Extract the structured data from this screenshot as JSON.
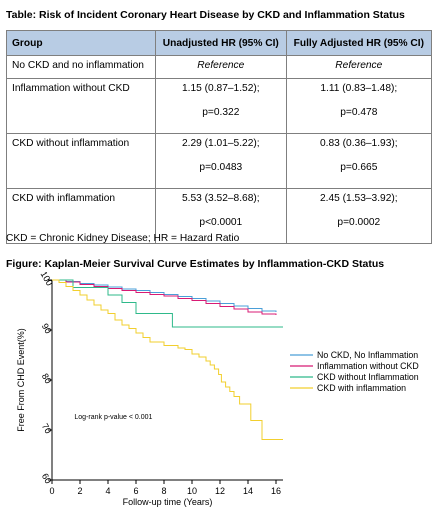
{
  "table": {
    "title": "Table: Risk of Incident Coronary Heart Disease by CKD and Inflammation Status",
    "headers": [
      "Group",
      "Unadjusted HR (95% CI)",
      "Fully Adjusted HR (95% CI)"
    ],
    "rows": [
      {
        "group": "No CKD and no inflammation",
        "unadj": "Reference",
        "unadj_p": "",
        "adj": "Reference",
        "adj_p": ""
      },
      {
        "group": "Inflammation without CKD",
        "unadj": "1.15 (0.87–1.52);",
        "unadj_p": "p=0.322",
        "adj": "1.11 (0.83–1.48);",
        "adj_p": "p=0.478"
      },
      {
        "group": "CKD without inflammation",
        "unadj": "2.29 (1.01–5.22);",
        "unadj_p": "p=0.0483",
        "adj": "0.83 (0.36–1.93);",
        "adj_p": "p=0.665"
      },
      {
        "group": "CKD with inflammation",
        "unadj": "5.53 (3.52–8.68);",
        "unadj_p": "p<0.0001",
        "adj": "2.45 (1.53–3.92);",
        "adj_p": "p=0.0002"
      }
    ],
    "footnote": "CKD = Chronic Kidney Disease; HR = Hazard Ratio"
  },
  "figure": {
    "title": "Figure: Kaplan-Meier Survival Curve Estimates by Inflammation-CKD Status"
  },
  "chart_data": {
    "type": "line",
    "xlabel": "Follow-up time (Years)",
    "ylabel": "Free From CHD Event(%)",
    "xlim": [
      0,
      16.5
    ],
    "ylim": [
      60,
      100
    ],
    "xticks": [
      0,
      2,
      4,
      6,
      8,
      10,
      12,
      14,
      16
    ],
    "yticks": [
      60,
      70,
      80,
      90,
      100
    ],
    "annotation": "Log-rank p-value < 0.001",
    "legend_position": "right",
    "series": [
      {
        "name": "No CKD, No Inflammation",
        "color": "#4a9fd8",
        "step": true,
        "points": [
          [
            0,
            100
          ],
          [
            1,
            99.7
          ],
          [
            2,
            99.3
          ],
          [
            3,
            99
          ],
          [
            4,
            98.6
          ],
          [
            5,
            98.2
          ],
          [
            6,
            97.9
          ],
          [
            7,
            97.5
          ],
          [
            8,
            97.1
          ],
          [
            9,
            96.7
          ],
          [
            10,
            96.3
          ],
          [
            11,
            95.8
          ],
          [
            12,
            95.3
          ],
          [
            13,
            94.8
          ],
          [
            14,
            94.3
          ],
          [
            15,
            93.8
          ],
          [
            16,
            93.6
          ]
        ]
      },
      {
        "name": "Inflammation without CKD",
        "color": "#d81b74",
        "step": true,
        "points": [
          [
            0,
            100
          ],
          [
            1,
            99.6
          ],
          [
            2,
            99.1
          ],
          [
            3,
            98.7
          ],
          [
            4,
            98.3
          ],
          [
            5,
            97.9
          ],
          [
            6,
            97.5
          ],
          [
            7,
            97.1
          ],
          [
            8,
            96.8
          ],
          [
            9,
            96.3
          ],
          [
            10,
            95.9
          ],
          [
            11,
            95.3
          ],
          [
            12,
            94.7
          ],
          [
            13,
            94.2
          ],
          [
            14,
            93.6
          ],
          [
            15,
            93.2
          ],
          [
            16,
            93
          ]
        ]
      },
      {
        "name": "CKD without Inflammation",
        "color": "#2eb98a",
        "step": true,
        "points": [
          [
            0,
            100
          ],
          [
            1.5,
            100
          ],
          [
            1.5,
            98.5
          ],
          [
            4,
            98.5
          ],
          [
            4,
            97
          ],
          [
            5,
            97
          ],
          [
            5,
            95.5
          ],
          [
            6,
            95.5
          ],
          [
            6,
            93.3
          ],
          [
            8.6,
            93.3
          ],
          [
            8.6,
            90.6
          ],
          [
            16.5,
            90.6
          ]
        ]
      },
      {
        "name": "CKD with inflammation",
        "color": "#f2cf2e",
        "step": true,
        "points": [
          [
            0,
            100
          ],
          [
            0.5,
            99.5
          ],
          [
            1,
            98.7
          ],
          [
            1.5,
            97.9
          ],
          [
            2,
            97
          ],
          [
            2.5,
            96
          ],
          [
            3,
            95
          ],
          [
            3.5,
            94
          ],
          [
            4,
            93.3
          ],
          [
            4.5,
            92
          ],
          [
            5,
            91
          ],
          [
            5.5,
            90.3
          ],
          [
            6,
            89.4
          ],
          [
            6.5,
            88.5
          ],
          [
            7,
            87.6
          ],
          [
            8,
            86.9
          ],
          [
            9,
            86.4
          ],
          [
            9.5,
            86.1
          ],
          [
            10,
            85.2
          ],
          [
            10.5,
            84.6
          ],
          [
            11,
            83.8
          ],
          [
            11.3,
            83
          ],
          [
            11.6,
            82.2
          ],
          [
            11.9,
            81.1
          ],
          [
            12.1,
            79.6
          ],
          [
            12.4,
            78.6
          ],
          [
            12.7,
            77.7
          ],
          [
            13.0,
            76.7
          ],
          [
            13.4,
            75.2
          ],
          [
            13.8,
            75.2
          ],
          [
            14.2,
            71.9
          ],
          [
            14.6,
            71.9
          ],
          [
            15.0,
            68.1
          ],
          [
            16.5,
            68.1
          ]
        ]
      }
    ]
  }
}
